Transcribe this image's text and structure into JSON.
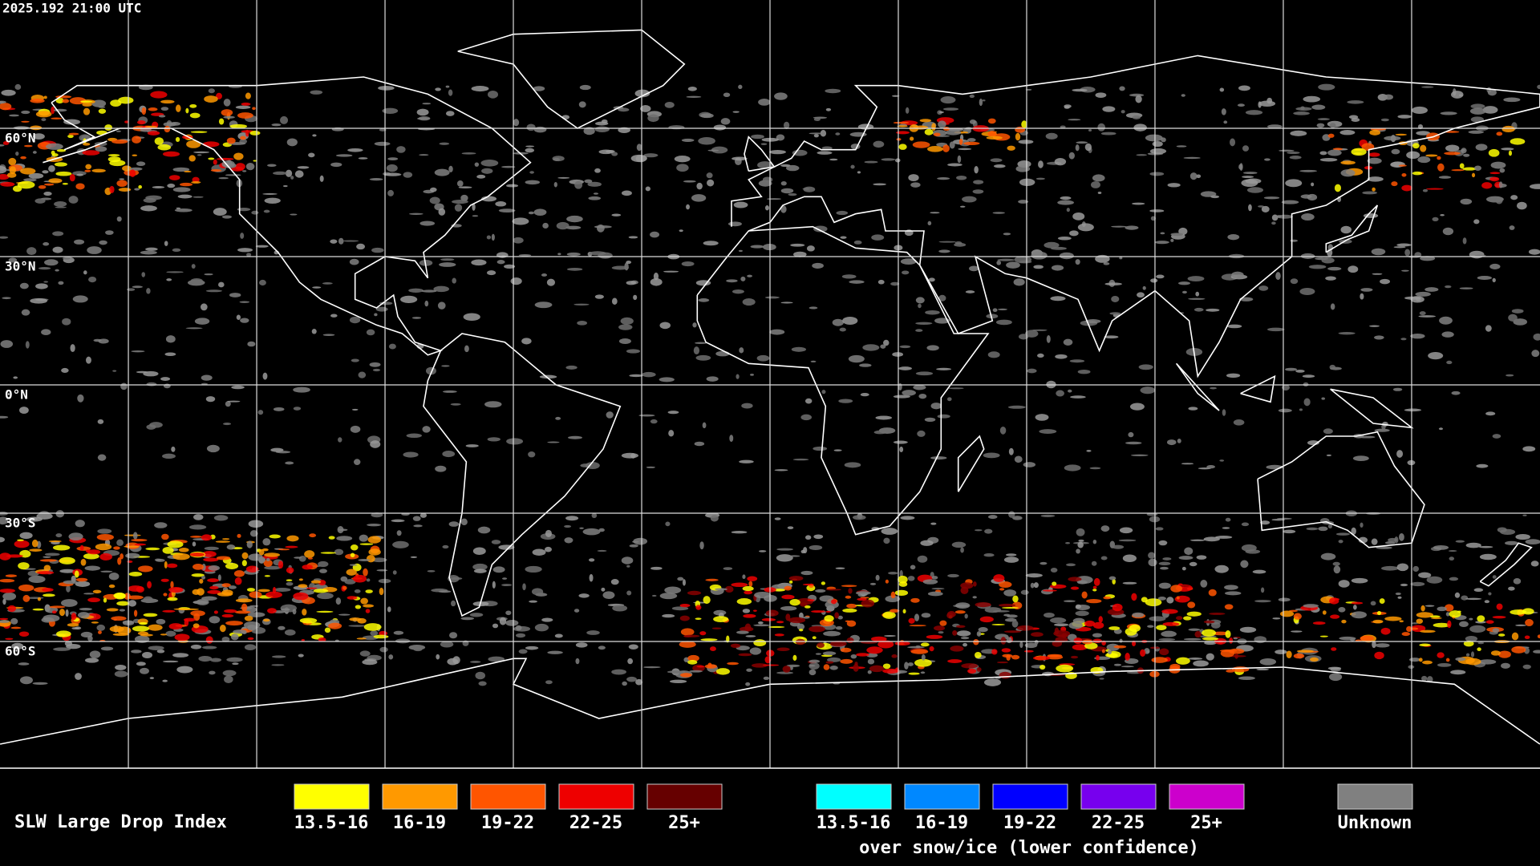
{
  "header": {
    "timestamp": "2025.192 21:00 UTC"
  },
  "map": {
    "lat_labels": [
      "60°N",
      "30°N",
      "0°N",
      "30°S",
      "60°S"
    ]
  },
  "legend": {
    "title": "SLW Large Drop Index",
    "groups": [
      {
        "items": [
          {
            "label": "13.5-16",
            "color": "#ffff00"
          },
          {
            "label": "16-19",
            "color": "#ff9900"
          },
          {
            "label": "19-22",
            "color": "#ff5500"
          },
          {
            "label": "22-25",
            "color": "#ee0000"
          },
          {
            "label": "25+",
            "color": "#660000"
          }
        ]
      },
      {
        "items": [
          {
            "label": "13.5-16",
            "color": "#00ffff"
          },
          {
            "label": "16-19",
            "color": "#0088ff"
          },
          {
            "label": "19-22",
            "color": "#0000ff"
          },
          {
            "label": "22-25",
            "color": "#7700ee"
          },
          {
            "label": "25+",
            "color": "#cc00cc"
          }
        ],
        "note": "over snow/ice (lower confidence)"
      }
    ],
    "unknown": {
      "label": "Unknown",
      "color": "#808080"
    }
  }
}
